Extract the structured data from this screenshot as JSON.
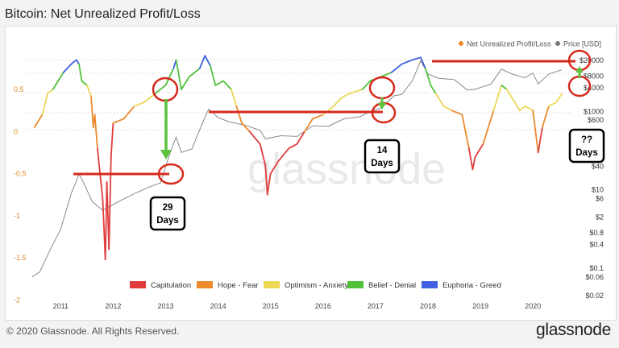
{
  "page": {
    "title": "Bitcoin: Net Unrealized Profit/Loss",
    "copyright": "© 2020 Glassnode. All Rights Reserved.",
    "brand": "glassnode"
  },
  "colors": {
    "capitulation": "#e03c3c",
    "hope_fear": "#ec8a2c",
    "optimism_anxiety": "#ecd855",
    "belief_denial": "#4fc23a",
    "euphoria_greed": "#3f60e0",
    "price": "#8a8a8a",
    "annotation_red": "#d62a1c",
    "annotation_green": "#5cc23e"
  },
  "chart_data": {
    "type": "line",
    "title": "Bitcoin: Net Unrealized Profit/Loss",
    "x_ticks": [
      "2011",
      "2012",
      "2013",
      "2014",
      "2015",
      "2016",
      "2017",
      "2018",
      "2019",
      "2020"
    ],
    "y_left": {
      "ticks": [
        "0.5",
        "0",
        "-0.5",
        "-1",
        "-1.5",
        "-2"
      ],
      "range": [
        -2,
        1
      ]
    },
    "y_right": {
      "scale": "log",
      "ticks": [
        "$20000",
        "$8000",
        "$4000",
        "$1000",
        "$600",
        "$40",
        "$10",
        "$6",
        "$2",
        "$0.8",
        "$0.4",
        "$0.1",
        "$0.06",
        "$0.02"
      ],
      "range": [
        0.02,
        30000
      ]
    },
    "legend_top": [
      "Net Unrealized Profit/Loss",
      "Price [USD]"
    ],
    "legend_bottom": [
      "Capitulation",
      "Hope - Fear",
      "Optimism - Anxiety",
      "Belief - Denial",
      "Euphoria - Greed"
    ],
    "series": [
      {
        "name": "Net Unrealized Profit/Loss",
        "points": [
          [
            2010.6,
            0.05
          ],
          [
            2010.75,
            0.2
          ],
          [
            2010.85,
            0.45
          ],
          [
            2010.95,
            0.5
          ],
          [
            2011.05,
            0.6
          ],
          [
            2011.15,
            0.7
          ],
          [
            2011.3,
            0.8
          ],
          [
            2011.4,
            0.85
          ],
          [
            2011.45,
            0.8
          ],
          [
            2011.5,
            0.6
          ],
          [
            2011.6,
            0.55
          ],
          [
            2011.68,
            0.42
          ],
          [
            2011.72,
            0.05
          ],
          [
            2011.75,
            0.2
          ],
          [
            2011.8,
            -0.2
          ],
          [
            2011.85,
            -0.5
          ],
          [
            2011.9,
            -0.8
          ],
          [
            2011.95,
            -1.52
          ],
          [
            2011.98,
            -0.6
          ],
          [
            2012.02,
            -1.4
          ],
          [
            2012.06,
            -0.3
          ],
          [
            2012.1,
            0.1
          ],
          [
            2012.3,
            0.15
          ],
          [
            2012.5,
            0.3
          ],
          [
            2012.7,
            0.35
          ],
          [
            2012.9,
            0.45
          ],
          [
            2013.1,
            0.55
          ],
          [
            2013.25,
            0.75
          ],
          [
            2013.3,
            0.85
          ],
          [
            2013.4,
            0.5
          ],
          [
            2013.55,
            0.65
          ],
          [
            2013.75,
            0.75
          ],
          [
            2013.85,
            0.9
          ],
          [
            2013.95,
            0.78
          ],
          [
            2014.05,
            0.55
          ],
          [
            2014.2,
            0.6
          ],
          [
            2014.35,
            0.5
          ],
          [
            2014.45,
            0.3
          ],
          [
            2014.55,
            0.1
          ],
          [
            2014.7,
            0.0
          ],
          [
            2014.9,
            -0.15
          ],
          [
            2015.0,
            -0.4
          ],
          [
            2015.04,
            -0.75
          ],
          [
            2015.1,
            -0.5
          ],
          [
            2015.25,
            -0.35
          ],
          [
            2015.45,
            -0.2
          ],
          [
            2015.6,
            -0.15
          ],
          [
            2015.75,
            0.0
          ],
          [
            2015.9,
            0.15
          ],
          [
            2016.1,
            0.2
          ],
          [
            2016.3,
            0.3
          ],
          [
            2016.45,
            0.4
          ],
          [
            2016.6,
            0.45
          ],
          [
            2016.85,
            0.5
          ],
          [
            2017.0,
            0.6
          ],
          [
            2017.2,
            0.65
          ],
          [
            2017.4,
            0.7
          ],
          [
            2017.6,
            0.8
          ],
          [
            2017.8,
            0.85
          ],
          [
            2017.96,
            0.88
          ],
          [
            2018.05,
            0.75
          ],
          [
            2018.15,
            0.55
          ],
          [
            2018.25,
            0.45
          ],
          [
            2018.4,
            0.3
          ],
          [
            2018.55,
            0.25
          ],
          [
            2018.75,
            0.2
          ],
          [
            2018.88,
            -0.2
          ],
          [
            2018.95,
            -0.45
          ],
          [
            2019.0,
            -0.3
          ],
          [
            2019.15,
            -0.15
          ],
          [
            2019.35,
            0.25
          ],
          [
            2019.5,
            0.55
          ],
          [
            2019.6,
            0.5
          ],
          [
            2019.75,
            0.35
          ],
          [
            2019.85,
            0.25
          ],
          [
            2019.95,
            0.3
          ],
          [
            2020.1,
            0.25
          ],
          [
            2020.2,
            -0.25
          ],
          [
            2020.28,
            0.05
          ],
          [
            2020.4,
            0.3
          ],
          [
            2020.55,
            0.35
          ],
          [
            2020.65,
            0.45
          ]
        ]
      },
      {
        "name": "Price [USD]",
        "points": [
          [
            2010.55,
            0.06
          ],
          [
            2010.7,
            0.08
          ],
          [
            2010.9,
            0.3
          ],
          [
            2011.1,
            1
          ],
          [
            2011.3,
            8
          ],
          [
            2011.45,
            25
          ],
          [
            2011.55,
            14
          ],
          [
            2011.7,
            5
          ],
          [
            2011.9,
            3
          ],
          [
            2012.2,
            5
          ],
          [
            2012.5,
            8
          ],
          [
            2012.8,
            12
          ],
          [
            2013.0,
            15
          ],
          [
            2013.2,
            100
          ],
          [
            2013.3,
            220
          ],
          [
            2013.4,
            90
          ],
          [
            2013.6,
            110
          ],
          [
            2013.8,
            500
          ],
          [
            2013.92,
            1150
          ],
          [
            2014.1,
            700
          ],
          [
            2014.3,
            550
          ],
          [
            2014.6,
            450
          ],
          [
            2014.9,
            330
          ],
          [
            2015.0,
            200
          ],
          [
            2015.3,
            240
          ],
          [
            2015.6,
            230
          ],
          [
            2015.9,
            430
          ],
          [
            2016.2,
            420
          ],
          [
            2016.5,
            650
          ],
          [
            2016.8,
            730
          ],
          [
            2017.0,
            1000
          ],
          [
            2017.2,
            1200
          ],
          [
            2017.45,
            2500
          ],
          [
            2017.6,
            2700
          ],
          [
            2017.8,
            6000
          ],
          [
            2017.96,
            19500
          ],
          [
            2018.1,
            9000
          ],
          [
            2018.3,
            7000
          ],
          [
            2018.6,
            6500
          ],
          [
            2018.85,
            3500
          ],
          [
            2019.0,
            3700
          ],
          [
            2019.3,
            5000
          ],
          [
            2019.5,
            12000
          ],
          [
            2019.7,
            9000
          ],
          [
            2019.95,
            7200
          ],
          [
            2020.1,
            9500
          ],
          [
            2020.2,
            5000
          ],
          [
            2020.4,
            9000
          ],
          [
            2020.65,
            11500
          ]
        ]
      }
    ],
    "annotations": [
      "29 Days",
      "14 Days",
      "?? Days"
    ]
  }
}
